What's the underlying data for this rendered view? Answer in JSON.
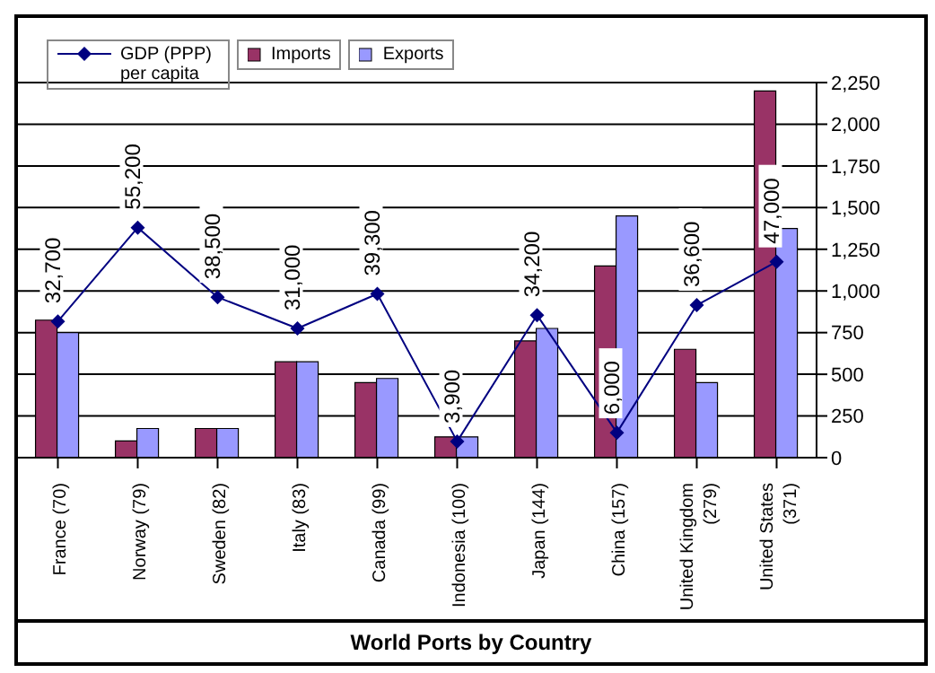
{
  "chart_data": {
    "type": "bar",
    "title": "World Ports by Country",
    "categories": [
      "France (70)",
      "Norway (79)",
      "Sweden (82)",
      "Italy (83)",
      "Canada (99)",
      "Indonesia (100)",
      "Japan (144)",
      "China (157)",
      "United Kingdom (279)",
      "United States (371)"
    ],
    "series": [
      {
        "name": "GDP (PPP) per capita",
        "type": "line",
        "axis": "y2",
        "color": "#000080",
        "values": [
          32700,
          55200,
          38500,
          31000,
          39300,
          3900,
          34200,
          6000,
          36600,
          47000
        ],
        "value_labels": [
          "32,700",
          "55,200",
          "38,500",
          "31,000",
          "39,300",
          "3,900",
          "34,200",
          "6,000",
          "36,600",
          "47,000"
        ]
      },
      {
        "name": "Imports",
        "color": "#993366",
        "values": [
          825,
          100,
          175,
          575,
          450,
          125,
          700,
          1150,
          650,
          2200
        ]
      },
      {
        "name": "Exports",
        "color": "#9999ff",
        "values": [
          750,
          175,
          175,
          575,
          475,
          125,
          775,
          1450,
          450,
          1375
        ]
      }
    ],
    "ylim": [
      0,
      2250
    ],
    "yticks": [
      {
        "value": 0,
        "label": "0"
      },
      {
        "value": 250,
        "label": "250"
      },
      {
        "value": 500,
        "label": "500"
      },
      {
        "value": 750,
        "label": "750"
      },
      {
        "value": 1000,
        "label": "1,000"
      },
      {
        "value": 1250,
        "label": "1,250"
      },
      {
        "value": 1500,
        "label": "1,500"
      },
      {
        "value": 1750,
        "label": "1,750"
      },
      {
        "value": 2000,
        "label": "2,000"
      },
      {
        "value": 2250,
        "label": "2,250"
      }
    ],
    "y2lim": [
      0,
      90000
    ],
    "grid": "y",
    "legend": "top left",
    "marker": "diamond",
    "line_style": "solid"
  }
}
